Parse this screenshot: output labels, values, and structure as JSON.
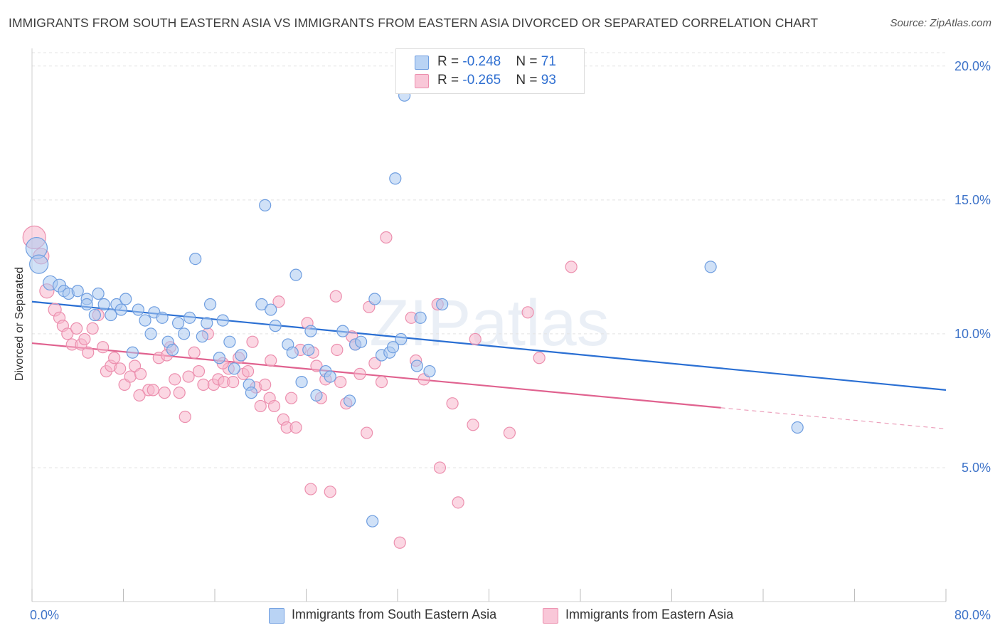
{
  "title": "IMMIGRANTS FROM SOUTH EASTERN ASIA VS IMMIGRANTS FROM EASTERN ASIA DIVORCED OR SEPARATED CORRELATION CHART",
  "source": "Source: ZipAtlas.com",
  "watermark": "ZIPatlas",
  "colors": {
    "blue_fill": "#a9c8f0",
    "blue_stroke": "#6f9ee0",
    "blue_line": "#2a6fd3",
    "pink_fill": "#f7b7cc",
    "pink_stroke": "#ec8fae",
    "pink_line": "#e0628f",
    "axis_text": "#3f74c9",
    "grid": "#e3e3e3"
  },
  "legend": {
    "rows": [
      {
        "r_label": "R = ",
        "r_value": "-0.248",
        "n_label": "N = ",
        "n_value": "71"
      },
      {
        "r_label": "R = ",
        "r_value": "-0.265",
        "n_label": "N = ",
        "n_value": "93"
      }
    ],
    "series": [
      "Immigrants from South Eastern Asia",
      "Immigrants from Eastern Asia"
    ]
  },
  "chart_data": {
    "type": "scatter",
    "title": "IMMIGRANTS FROM SOUTH EASTERN ASIA VS IMMIGRANTS FROM EASTERN ASIA DIVORCED OR SEPARATED CORRELATION CHART",
    "xlabel": "",
    "ylabel": "Divorced or Separated",
    "xlim": [
      0,
      80
    ],
    "ylim": [
      0,
      20.5
    ],
    "x_tick_labels": [
      "0.0%",
      "80.0%"
    ],
    "y_ticks": [
      5,
      10,
      15,
      20
    ],
    "y_tick_labels": [
      "5.0%",
      "10.0%",
      "15.0%",
      "20.0%"
    ],
    "grid": true,
    "legend_position": "top-center",
    "series": [
      {
        "name": "Immigrants from South Eastern Asia",
        "color": "#a9c8f0",
        "trend": {
          "x": [
            0,
            80
          ],
          "y": [
            11.2,
            7.9
          ],
          "dashed_from": null
        },
        "points": [
          [
            0.4,
            13.2,
            15
          ],
          [
            0.6,
            12.6,
            13
          ],
          [
            1.6,
            11.9,
            10
          ],
          [
            2.4,
            11.8,
            9
          ],
          [
            2.8,
            11.6,
            8
          ],
          [
            3.2,
            11.5,
            8
          ],
          [
            4,
            11.6,
            8
          ],
          [
            4.8,
            11.3,
            8
          ],
          [
            4.8,
            11.1,
            8
          ],
          [
            5.5,
            10.7,
            8
          ],
          [
            5.8,
            11.5,
            8
          ],
          [
            6.3,
            11.1,
            8
          ],
          [
            6.9,
            10.7,
            8
          ],
          [
            7.4,
            11.1,
            8
          ],
          [
            7.8,
            10.9,
            8
          ],
          [
            8.2,
            11.3,
            8
          ],
          [
            8.8,
            9.3,
            8
          ],
          [
            9.3,
            10.9,
            8
          ],
          [
            9.9,
            10.5,
            8
          ],
          [
            10.4,
            10.0,
            8
          ],
          [
            10.7,
            10.8,
            8
          ],
          [
            11.4,
            10.6,
            8
          ],
          [
            11.9,
            9.7,
            8
          ],
          [
            12.3,
            9.4,
            8
          ],
          [
            12.8,
            10.4,
            8
          ],
          [
            13.3,
            10.0,
            8
          ],
          [
            13.8,
            10.6,
            8
          ],
          [
            14.3,
            12.8,
            8
          ],
          [
            14.9,
            9.9,
            8
          ],
          [
            15.3,
            10.4,
            8
          ],
          [
            15.6,
            11.1,
            8
          ],
          [
            16.4,
            9.1,
            8
          ],
          [
            16.7,
            10.5,
            8
          ],
          [
            17.3,
            9.7,
            8
          ],
          [
            17.7,
            8.7,
            8
          ],
          [
            18.3,
            9.2,
            8
          ],
          [
            19.0,
            8.1,
            8
          ],
          [
            19.2,
            7.8,
            8
          ],
          [
            20.1,
            11.1,
            8
          ],
          [
            20.4,
            14.8,
            8
          ],
          [
            20.9,
            10.9,
            8
          ],
          [
            21.3,
            10.3,
            8
          ],
          [
            22.4,
            9.6,
            8
          ],
          [
            22.8,
            9.3,
            8
          ],
          [
            23.1,
            12.2,
            8
          ],
          [
            23.6,
            8.2,
            8
          ],
          [
            24.2,
            9.4,
            8
          ],
          [
            24.4,
            10.1,
            8
          ],
          [
            24.9,
            7.7,
            8
          ],
          [
            25.7,
            8.6,
            8
          ],
          [
            26.1,
            8.4,
            8
          ],
          [
            27.2,
            10.1,
            8
          ],
          [
            27.8,
            7.5,
            8
          ],
          [
            28.3,
            9.6,
            8
          ],
          [
            28.8,
            9.7,
            8
          ],
          [
            30.0,
            11.3,
            8
          ],
          [
            30.6,
            9.2,
            8
          ],
          [
            31.3,
            9.3,
            8
          ],
          [
            31.8,
            15.8,
            8
          ],
          [
            32.3,
            9.8,
            8
          ],
          [
            32.6,
            18.9,
            8
          ],
          [
            33.7,
            8.8,
            8
          ],
          [
            34.0,
            10.6,
            8
          ],
          [
            34.8,
            8.6,
            8
          ],
          [
            35.9,
            11.1,
            8
          ],
          [
            29.8,
            3.0,
            8
          ],
          [
            59.4,
            12.5,
            8
          ],
          [
            67.0,
            6.5,
            8
          ],
          [
            31.6,
            9.5,
            8
          ]
        ]
      },
      {
        "name": "Immigrants from Eastern Asia",
        "color": "#f7b7cc",
        "trend": {
          "x": [
            0,
            80
          ],
          "y": [
            9.65,
            6.45
          ],
          "dashed_from": 60.3
        },
        "points": [
          [
            0.2,
            13.6,
            16
          ],
          [
            0.8,
            12.9,
            11
          ],
          [
            1.3,
            11.6,
            10
          ],
          [
            2.0,
            10.9,
            9
          ],
          [
            2.4,
            10.6,
            8
          ],
          [
            2.7,
            10.3,
            8
          ],
          [
            3.1,
            10.0,
            8
          ],
          [
            3.5,
            9.6,
            8
          ],
          [
            3.9,
            10.2,
            8
          ],
          [
            4.3,
            9.6,
            8
          ],
          [
            4.6,
            9.8,
            8
          ],
          [
            4.9,
            9.3,
            8
          ],
          [
            5.3,
            10.2,
            8
          ],
          [
            5.8,
            10.7,
            8
          ],
          [
            6.2,
            9.5,
            8
          ],
          [
            6.5,
            8.6,
            8
          ],
          [
            6.9,
            8.8,
            8
          ],
          [
            7.2,
            9.1,
            8
          ],
          [
            7.7,
            8.7,
            8
          ],
          [
            8.1,
            8.1,
            8
          ],
          [
            8.6,
            8.4,
            8
          ],
          [
            9.0,
            8.8,
            8
          ],
          [
            9.5,
            8.5,
            8
          ],
          [
            10.2,
            7.9,
            8
          ],
          [
            10.6,
            7.9,
            8
          ],
          [
            11.1,
            9.1,
            8
          ],
          [
            11.6,
            7.8,
            8
          ],
          [
            12.1,
            9.5,
            8
          ],
          [
            12.5,
            8.3,
            8
          ],
          [
            12.9,
            7.8,
            8
          ],
          [
            13.4,
            6.9,
            8
          ],
          [
            13.7,
            8.4,
            8
          ],
          [
            14.2,
            9.3,
            8
          ],
          [
            14.6,
            8.6,
            8
          ],
          [
            15.0,
            8.1,
            8
          ],
          [
            15.4,
            10.0,
            8
          ],
          [
            15.9,
            8.1,
            8
          ],
          [
            16.3,
            8.3,
            8
          ],
          [
            16.8,
            8.2,
            8
          ],
          [
            17.2,
            8.7,
            8
          ],
          [
            17.6,
            8.2,
            8
          ],
          [
            18.1,
            9.1,
            8
          ],
          [
            18.5,
            8.5,
            8
          ],
          [
            18.9,
            8.6,
            8
          ],
          [
            19.3,
            9.7,
            8
          ],
          [
            19.6,
            8.0,
            8
          ],
          [
            20.0,
            7.3,
            8
          ],
          [
            20.4,
            8.1,
            8
          ],
          [
            20.8,
            7.6,
            8
          ],
          [
            21.2,
            7.3,
            8
          ],
          [
            21.6,
            11.2,
            8
          ],
          [
            22.0,
            6.8,
            8
          ],
          [
            22.3,
            6.5,
            8
          ],
          [
            22.7,
            7.6,
            8
          ],
          [
            23.1,
            6.5,
            8
          ],
          [
            23.5,
            9.4,
            8
          ],
          [
            24.1,
            10.4,
            8
          ],
          [
            24.6,
            9.3,
            8
          ],
          [
            24.9,
            8.8,
            8
          ],
          [
            25.3,
            7.6,
            8
          ],
          [
            25.7,
            8.3,
            8
          ],
          [
            26.1,
            4.1,
            8
          ],
          [
            26.6,
            11.4,
            8
          ],
          [
            27.0,
            8.2,
            8
          ],
          [
            27.5,
            7.4,
            8
          ],
          [
            28.0,
            9.9,
            8
          ],
          [
            28.7,
            8.5,
            8
          ],
          [
            29.3,
            6.3,
            8
          ],
          [
            30.0,
            8.9,
            8
          ],
          [
            30.6,
            8.2,
            8
          ],
          [
            31.0,
            13.6,
            8
          ],
          [
            32.2,
            2.2,
            8
          ],
          [
            33.2,
            10.6,
            8
          ],
          [
            34.3,
            8.3,
            8
          ],
          [
            35.7,
            5.0,
            8
          ],
          [
            36.8,
            7.4,
            8
          ],
          [
            37.3,
            3.7,
            8
          ],
          [
            38.8,
            9.8,
            8
          ],
          [
            41.8,
            6.3,
            8
          ],
          [
            43.4,
            10.8,
            8
          ],
          [
            44.4,
            9.1,
            8
          ],
          [
            47.2,
            12.5,
            8
          ],
          [
            26.7,
            9.4,
            8
          ],
          [
            29.5,
            11.0,
            8
          ],
          [
            33.6,
            9.0,
            8
          ],
          [
            35.5,
            11.1,
            8
          ],
          [
            38.6,
            6.6,
            8
          ],
          [
            24.4,
            4.2,
            8
          ],
          [
            20.9,
            9.0,
            8
          ],
          [
            16.7,
            8.9,
            8
          ],
          [
            11.8,
            9.2,
            8
          ],
          [
            9.4,
            7.7,
            8
          ],
          [
            28.3,
            9.6,
            8
          ]
        ]
      }
    ]
  }
}
